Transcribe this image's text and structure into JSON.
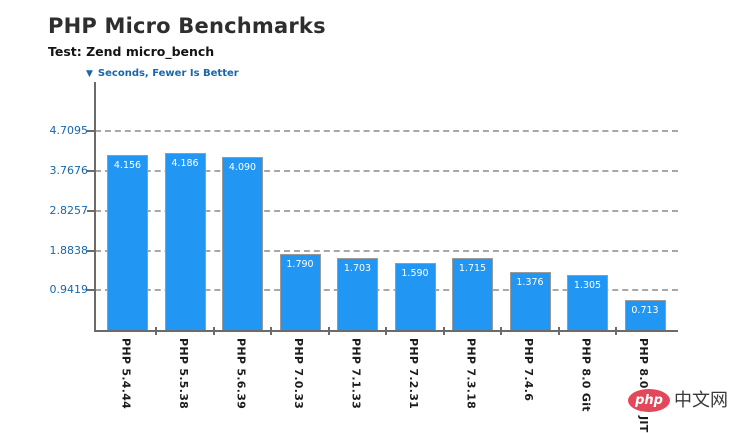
{
  "header": {
    "title": "PHP Micro Benchmarks",
    "subtitle": "Test: Zend micro_bench"
  },
  "legend": {
    "marker_icon": "▼",
    "label": "Seconds, Fewer Is Better"
  },
  "chart_data": {
    "type": "bar",
    "title": "PHP Micro Benchmarks",
    "subtitle": "Test: Zend micro_bench",
    "ylabel": "Seconds, Fewer Is Better",
    "orientation": "vertical",
    "categories": [
      "PHP 5.4.44",
      "PHP 5.5.38",
      "PHP 5.6.39",
      "PHP 7.0.33",
      "PHP 7.1.33",
      "PHP 7.2.31",
      "PHP 7.3.18",
      "PHP 7.4.6",
      "PHP 8.0 Git",
      "PHP 8.0 Git JIT"
    ],
    "values": [
      4.156,
      4.186,
      4.09,
      1.79,
      1.703,
      1.59,
      1.715,
      1.376,
      1.305,
      0.713
    ],
    "value_labels": [
      "4.156",
      "4.186",
      "4.090",
      "1.790",
      "1.703",
      "1.590",
      "1.715",
      "1.376",
      "1.305",
      "0.713"
    ],
    "yticks": [
      4.7095,
      3.7676,
      2.8257,
      1.8838,
      0.9419
    ],
    "ytick_labels": [
      "4.7095",
      "3.7676",
      "2.8257",
      "1.8838",
      "0.9419"
    ],
    "ylim": [
      0,
      5.72
    ],
    "grid": "dashed horizontal",
    "legend_position": "top-left",
    "bar_label_position": "inside-top"
  },
  "colors": {
    "bar_fill": "#2196f3",
    "bar_border": "#9a9a9a",
    "axis": "#6b6b6b",
    "grid": "#a8a8a8",
    "tick_label": "#1767ac",
    "title_text": "#2e2e2e",
    "watermark_red": "#e2485a"
  },
  "watermark": {
    "logo_text": "php",
    "site_text": "中文网"
  }
}
